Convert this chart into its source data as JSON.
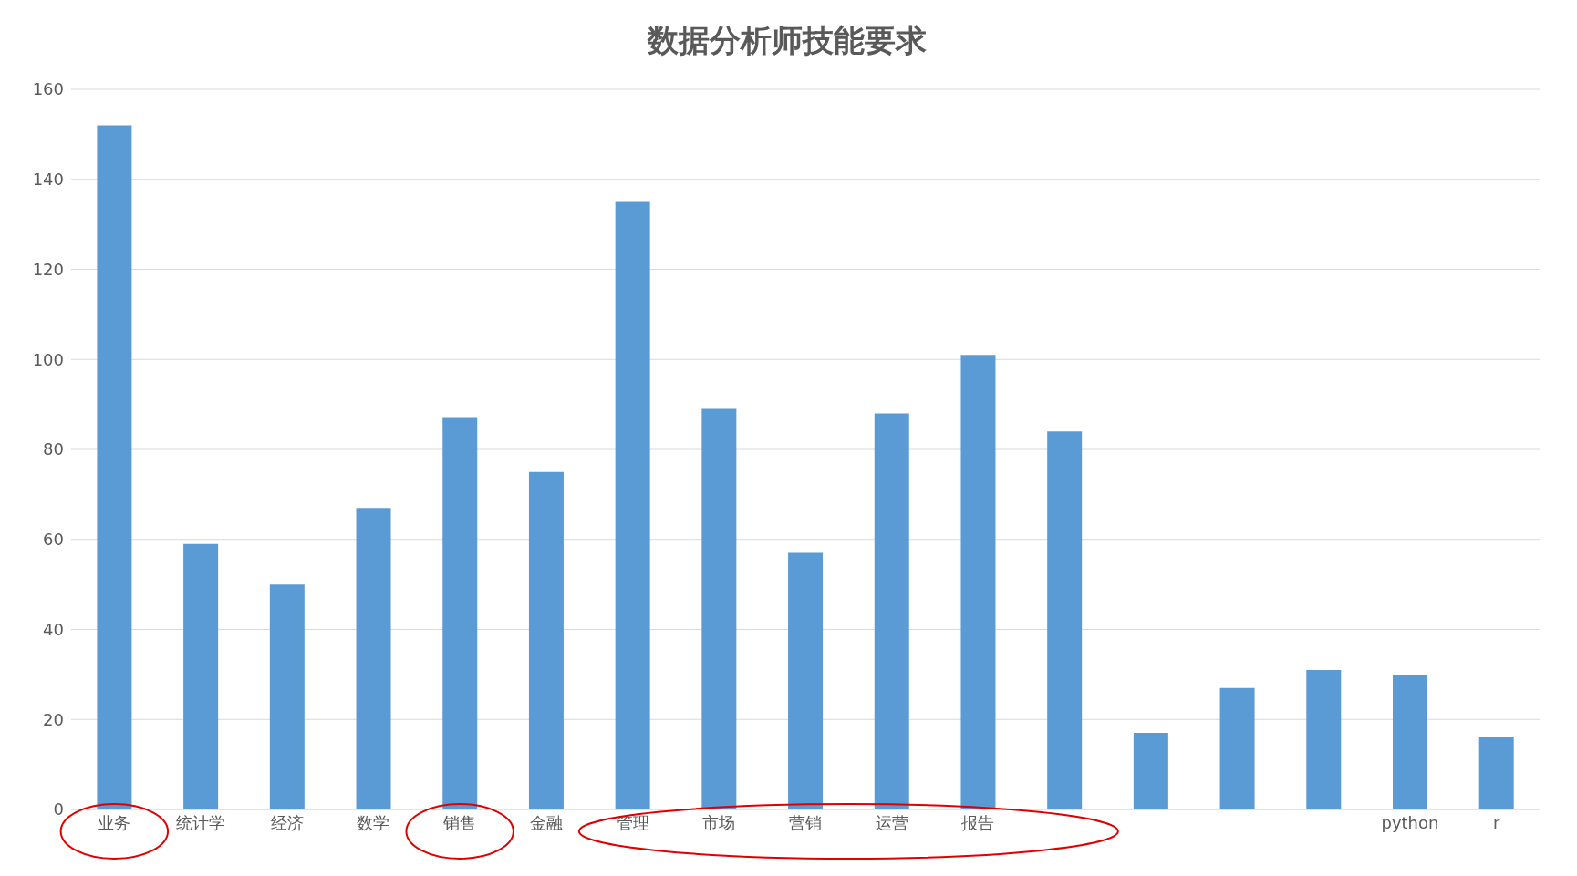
{
  "chart_data": {
    "type": "bar",
    "title": "数据分析师技能要求",
    "categories": [
      "业务",
      "统计学",
      "经济",
      "数学",
      "销售",
      "金融",
      "管理",
      "市场",
      "营销",
      "运营",
      "报告",
      null,
      null,
      null,
      null,
      "python",
      "r"
    ],
    "values": [
      152,
      59,
      50,
      67,
      87,
      75,
      135,
      89,
      57,
      88,
      101,
      84,
      17,
      27,
      31,
      30,
      16
    ],
    "color": "#5b9bd5",
    "ylim": [
      0,
      160
    ],
    "yticks": [
      0,
      20,
      40,
      60,
      80,
      100,
      120,
      140,
      160
    ],
    "grid": "y"
  }
}
